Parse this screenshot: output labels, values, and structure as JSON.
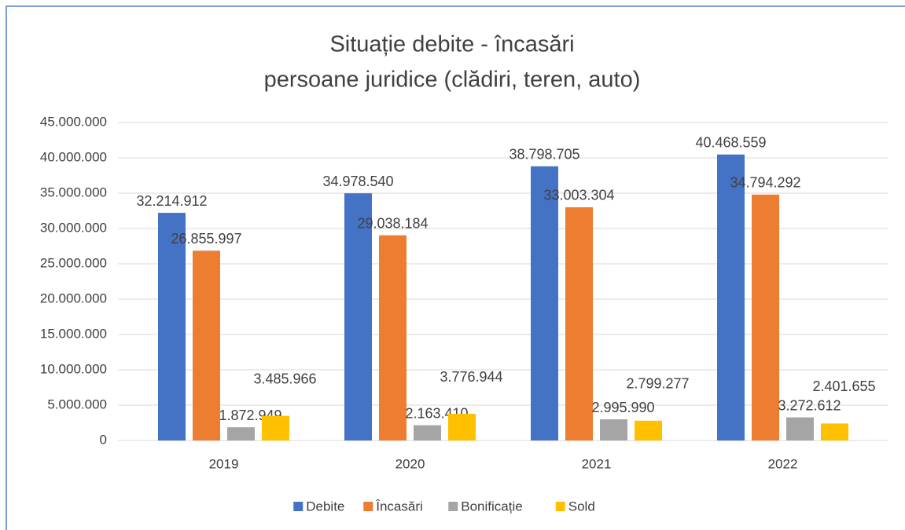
{
  "chart_data": {
    "type": "bar",
    "title": [
      "Situație debite - încasări",
      "persoane juridice (clădiri, teren, auto)"
    ],
    "categories": [
      "2019",
      "2020",
      "2021",
      "2022"
    ],
    "series": [
      {
        "name": "Debite",
        "color": "#4472c4",
        "values": [
          32214912,
          34978540,
          38798705,
          40468559
        ],
        "value_labels": [
          "32.214.912",
          "34.978.540",
          "38.798.705",
          "40.468.559"
        ]
      },
      {
        "name": "Încasări",
        "color": "#ed7d31",
        "values": [
          26855997,
          29038184,
          33003304,
          34794292
        ],
        "value_labels": [
          "26.855.997",
          "29.038.184",
          "33.003.304",
          "34.794.292"
        ]
      },
      {
        "name": "Bonificație",
        "color": "#a5a5a5",
        "values": [
          1872949,
          2163410,
          2995990,
          3272612
        ],
        "value_labels": [
          "1.872.949",
          "2.163.410",
          "2.995.990",
          "3.272.612"
        ]
      },
      {
        "name": "Sold",
        "color": "#ffc000",
        "values": [
          3485966,
          3776944,
          2799277,
          2401655
        ],
        "value_labels": [
          "3.485.966",
          "3.776.944",
          "2.799.277",
          "2.401.655"
        ]
      }
    ],
    "ylim": [
      0,
      45000000
    ],
    "yticks": [
      0,
      {
        "value": 5000000,
        "label": "5.000.000"
      },
      {
        "value": 10000000,
        "label": "10.000.000"
      },
      {
        "value": 15000000,
        "label": "15.000.000"
      },
      {
        "value": 20000000,
        "label": "20.000.000"
      },
      {
        "value": 25000000,
        "label": "25.000.000"
      },
      {
        "value": 30000000,
        "label": "30.000.000"
      },
      {
        "value": 35000000,
        "label": "35.000.000"
      },
      {
        "value": 40000000,
        "label": "40.000.000"
      },
      {
        "value": 45000000,
        "label": "45.000.000"
      }
    ],
    "grid": true,
    "legend": "bottom"
  }
}
